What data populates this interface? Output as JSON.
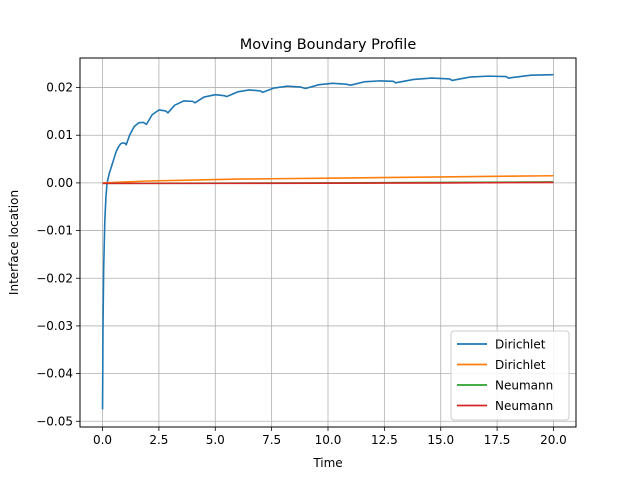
{
  "chart_data": {
    "type": "line",
    "title": "Moving Boundary Profile",
    "xlabel": "Time",
    "ylabel": "Interface location",
    "xlim": [
      -1.0,
      21.0
    ],
    "ylim": [
      -0.0512,
      0.0262
    ],
    "xticks": [
      0.0,
      2.5,
      5.0,
      7.5,
      10.0,
      12.5,
      15.0,
      17.5,
      20.0
    ],
    "xtick_labels": [
      "0.0",
      "2.5",
      "5.0",
      "7.5",
      "10.0",
      "12.5",
      "15.0",
      "17.5",
      "20.0"
    ],
    "yticks": [
      -0.05,
      -0.04,
      -0.03,
      -0.02,
      -0.01,
      0.0,
      0.01,
      0.02
    ],
    "ytick_labels": [
      "−0.05",
      "−0.04",
      "−0.03",
      "−0.02",
      "−0.01",
      "0.00",
      "0.01",
      "0.02"
    ],
    "grid": true,
    "legend_position": "lower-right",
    "series": [
      {
        "name": "Dirichlet",
        "color": "#1f77b4",
        "x": [
          0,
          0.02,
          0.05,
          0.1,
          0.15,
          0.2,
          0.3,
          0.4,
          0.5,
          0.6,
          0.7,
          0.8,
          0.9,
          1.0,
          1.05,
          1.2,
          1.4,
          1.6,
          1.8,
          1.95,
          2.2,
          2.5,
          2.8,
          2.9,
          3.2,
          3.6,
          4.0,
          4.1,
          4.5,
          5.0,
          5.4,
          5.5,
          6.0,
          6.5,
          7.0,
          7.1,
          7.6,
          8.2,
          8.8,
          9.0,
          9.6,
          10.2,
          10.8,
          11.0,
          11.6,
          12.3,
          12.9,
          13.0,
          13.8,
          14.6,
          15.4,
          15.5,
          16.3,
          17.1,
          17.9,
          18.0,
          19.0,
          20.0
        ],
        "y": [
          -0.0475,
          -0.03,
          -0.018,
          -0.008,
          -0.003,
          0.0,
          0.002,
          0.0035,
          0.005,
          0.0065,
          0.0075,
          0.0082,
          0.0084,
          0.0083,
          0.008,
          0.01,
          0.0118,
          0.0126,
          0.0127,
          0.0123,
          0.0143,
          0.0153,
          0.0151,
          0.0147,
          0.0163,
          0.0172,
          0.0171,
          0.0168,
          0.018,
          0.0185,
          0.0183,
          0.0181,
          0.0191,
          0.0195,
          0.0193,
          0.019,
          0.0199,
          0.0203,
          0.0201,
          0.0198,
          0.0206,
          0.0209,
          0.0207,
          0.0205,
          0.0212,
          0.0214,
          0.0213,
          0.021,
          0.0217,
          0.022,
          0.0218,
          0.0215,
          0.0222,
          0.0224,
          0.0223,
          0.022,
          0.0226,
          0.0227
        ]
      },
      {
        "name": "Dirichlet",
        "color": "#ff7f0e",
        "x": [
          0,
          1,
          2,
          4,
          6,
          8,
          10,
          12,
          14,
          16,
          18,
          20
        ],
        "y": [
          0.0,
          0.0002,
          0.0004,
          0.0006,
          0.0008,
          0.0009,
          0.001,
          0.0011,
          0.0012,
          0.0013,
          0.0014,
          0.0015
        ]
      },
      {
        "name": "Neumann",
        "color": "#2ca02c",
        "x": [
          0,
          5,
          10,
          15,
          20
        ],
        "y": [
          -0.0001,
          -5e-05,
          0.0,
          0.0001,
          0.0002
        ]
      },
      {
        "name": "Neumann",
        "color": "#d62728",
        "x": [
          0,
          5,
          10,
          15,
          20
        ],
        "y": [
          -0.0001,
          -0.0001,
          -5e-05,
          0.0,
          0.0001
        ]
      }
    ]
  }
}
